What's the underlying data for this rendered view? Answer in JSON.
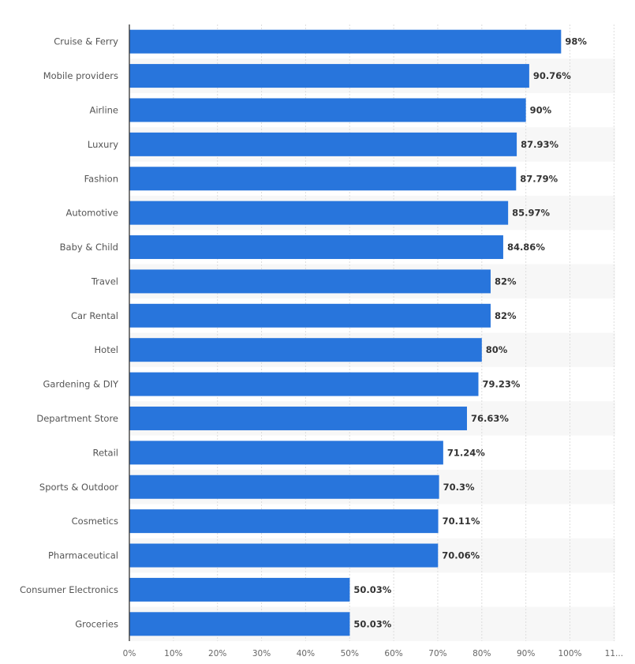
{
  "chart_data": {
    "type": "bar",
    "orientation": "horizontal",
    "categories": [
      "Cruise & Ferry",
      "Mobile providers",
      "Airline",
      "Luxury",
      "Fashion",
      "Automotive",
      "Baby & Child",
      "Travel",
      "Car Rental",
      "Hotel",
      "Gardening & DIY",
      "Department Store",
      "Retail",
      "Sports & Outdoor",
      "Cosmetics",
      "Pharmaceutical",
      "Consumer Electronics",
      "Groceries"
    ],
    "values": [
      98,
      90.76,
      90,
      87.93,
      87.79,
      85.97,
      84.86,
      82,
      82,
      80,
      79.23,
      76.63,
      71.24,
      70.3,
      70.11,
      70.06,
      50.03,
      50.03
    ],
    "data_labels": [
      "98%",
      "90.76%",
      "90%",
      "87.93%",
      "87.79%",
      "85.97%",
      "84.86%",
      "82%",
      "82%",
      "80%",
      "79.23%",
      "76.63%",
      "71.24%",
      "70.3%",
      "70.11%",
      "70.06%",
      "50.03%",
      "50.03%"
    ],
    "x_ticks": [
      "0%",
      "10%",
      "20%",
      "30%",
      "40%",
      "50%",
      "60%",
      "70%",
      "80%",
      "90%",
      "100%",
      "11..."
    ],
    "xlim": [
      0,
      110
    ],
    "grid": true,
    "title": "",
    "xlabel": "",
    "ylabel": "",
    "colors": {
      "bar": "#2875dc",
      "stripe": "#f7f7f7",
      "grid": "#dddddd",
      "axis": "#333333"
    }
  }
}
